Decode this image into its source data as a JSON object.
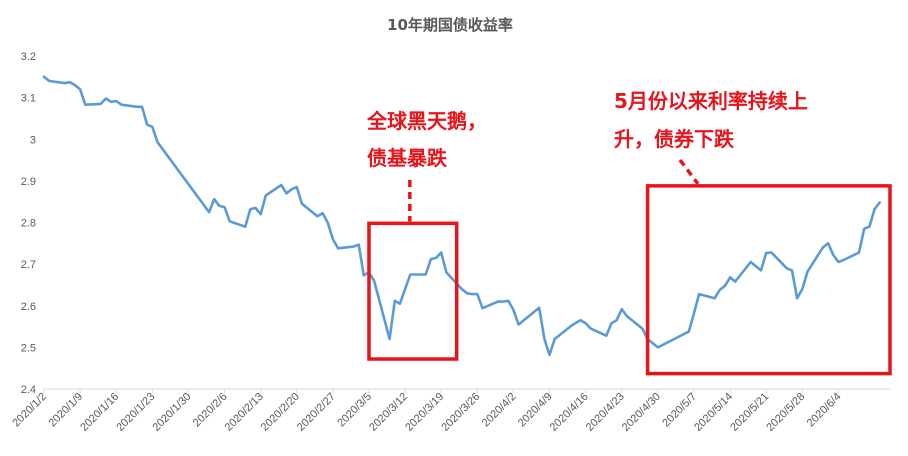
{
  "chart_data": {
    "type": "line",
    "title": "10年期国债收益率",
    "xlabel": "",
    "ylabel": "",
    "ylim": [
      2.4,
      3.2
    ],
    "y_ticks": [
      "2.4",
      "2.5",
      "2.6",
      "2.7",
      "2.8",
      "2.9",
      "3",
      "3.1",
      "3.2"
    ],
    "x_ticks": [
      "2020/1/2",
      "2020/1/9",
      "2020/1/16",
      "2020/1/23",
      "2020/1/30",
      "2020/2/6",
      "2020/2/13",
      "2020/2/20",
      "2020/2/27",
      "2020/3/5",
      "2020/3/12",
      "2020/3/19",
      "2020/3/26",
      "2020/4/2",
      "2020/4/9",
      "2020/4/16",
      "2020/4/23",
      "2020/4/30",
      "2020/5/7",
      "2020/5/14",
      "2020/5/21",
      "2020/5/28",
      "2020/6/4"
    ],
    "grid": false,
    "legend": "none",
    "series": [
      {
        "color": "#5b9bd5",
        "points": [
          [
            "2020-01-02",
            3.15
          ],
          [
            "2020-01-03",
            3.14
          ],
          [
            "2020-01-06",
            3.135
          ],
          [
            "2020-01-07",
            3.137
          ],
          [
            "2020-01-08",
            3.13
          ],
          [
            "2020-01-09",
            3.12
          ],
          [
            "2020-01-10",
            3.083
          ],
          [
            "2020-01-13",
            3.085
          ],
          [
            "2020-01-14",
            3.098
          ],
          [
            "2020-01-15",
            3.09
          ],
          [
            "2020-01-16",
            3.092
          ],
          [
            "2020-01-17",
            3.083
          ],
          [
            "2020-01-20",
            3.078
          ],
          [
            "2020-01-21",
            3.078
          ],
          [
            "2020-01-22",
            3.035
          ],
          [
            "2020-01-23",
            3.03
          ],
          [
            "2020-01-24",
            2.993
          ],
          [
            "2020-02-03",
            2.825
          ],
          [
            "2020-02-04",
            2.856
          ],
          [
            "2020-02-05",
            2.84
          ],
          [
            "2020-02-06",
            2.837
          ],
          [
            "2020-02-07",
            2.803
          ],
          [
            "2020-02-10",
            2.79
          ],
          [
            "2020-02-11",
            2.832
          ],
          [
            "2020-02-12",
            2.835
          ],
          [
            "2020-02-13",
            2.82
          ],
          [
            "2020-02-14",
            2.865
          ],
          [
            "2020-02-17",
            2.89
          ],
          [
            "2020-02-18",
            2.87
          ],
          [
            "2020-02-19",
            2.88
          ],
          [
            "2020-02-20",
            2.885
          ],
          [
            "2020-02-21",
            2.845
          ],
          [
            "2020-02-24",
            2.815
          ],
          [
            "2020-02-25",
            2.822
          ],
          [
            "2020-02-26",
            2.8
          ],
          [
            "2020-02-27",
            2.76
          ],
          [
            "2020-02-28",
            2.738
          ],
          [
            "2020-03-02",
            2.742
          ],
          [
            "2020-03-03",
            2.747
          ],
          [
            "2020-03-04",
            2.673
          ],
          [
            "2020-03-05",
            2.68
          ],
          [
            "2020-03-06",
            2.66
          ],
          [
            "2020-03-09",
            2.52
          ],
          [
            "2020-03-10",
            2.612
          ],
          [
            "2020-03-11",
            2.605
          ],
          [
            "2020-03-12",
            2.64
          ],
          [
            "2020-03-13",
            2.675
          ],
          [
            "2020-03-16",
            2.675
          ],
          [
            "2020-03-17",
            2.712
          ],
          [
            "2020-03-18",
            2.715
          ],
          [
            "2020-03-19",
            2.728
          ],
          [
            "2020-03-20",
            2.68
          ],
          [
            "2020-03-23",
            2.64
          ],
          [
            "2020-03-24",
            2.63
          ],
          [
            "2020-03-25",
            2.628
          ],
          [
            "2020-03-26",
            2.628
          ],
          [
            "2020-03-27",
            2.594
          ],
          [
            "2020-03-30",
            2.61
          ],
          [
            "2020-03-31",
            2.61
          ],
          [
            "2020-04-01",
            2.612
          ],
          [
            "2020-04-02",
            2.59
          ],
          [
            "2020-04-03",
            2.555
          ],
          [
            "2020-04-07",
            2.595
          ],
          [
            "2020-04-08",
            2.52
          ],
          [
            "2020-04-09",
            2.482
          ],
          [
            "2020-04-10",
            2.52
          ],
          [
            "2020-04-13",
            2.55
          ],
          [
            "2020-04-14",
            2.558
          ],
          [
            "2020-04-15",
            2.565
          ],
          [
            "2020-04-16",
            2.558
          ],
          [
            "2020-04-17",
            2.545
          ],
          [
            "2020-04-20",
            2.528
          ],
          [
            "2020-04-21",
            2.558
          ],
          [
            "2020-04-22",
            2.565
          ],
          [
            "2020-04-23",
            2.592
          ],
          [
            "2020-04-24",
            2.575
          ],
          [
            "2020-04-27",
            2.545
          ],
          [
            "2020-04-28",
            2.52
          ],
          [
            "2020-04-29",
            2.51
          ],
          [
            "2020-04-30",
            2.5
          ],
          [
            "2020-05-06",
            2.538
          ],
          [
            "2020-05-07",
            2.582
          ],
          [
            "2020-05-08",
            2.628
          ],
          [
            "2020-05-11",
            2.618
          ],
          [
            "2020-05-12",
            2.638
          ],
          [
            "2020-05-13",
            2.648
          ],
          [
            "2020-05-14",
            2.668
          ],
          [
            "2020-05-15",
            2.658
          ],
          [
            "2020-05-18",
            2.705
          ],
          [
            "2020-05-19",
            2.695
          ],
          [
            "2020-05-20",
            2.685
          ],
          [
            "2020-05-21",
            2.727
          ],
          [
            "2020-05-22",
            2.728
          ],
          [
            "2020-05-25",
            2.69
          ],
          [
            "2020-05-26",
            2.685
          ],
          [
            "2020-05-27",
            2.618
          ],
          [
            "2020-05-28",
            2.64
          ],
          [
            "2020-05-29",
            2.682
          ],
          [
            "2020-06-01",
            2.74
          ],
          [
            "2020-06-02",
            2.75
          ],
          [
            "2020-06-03",
            2.722
          ],
          [
            "2020-06-04",
            2.705
          ],
          [
            "2020-06-05",
            2.71
          ],
          [
            "2020-06-08",
            2.728
          ],
          [
            "2020-06-09",
            2.785
          ],
          [
            "2020-06-10",
            2.79
          ],
          [
            "2020-06-11",
            2.832
          ],
          [
            "2020-06-12",
            2.848
          ]
        ]
      }
    ],
    "annotations": [
      {
        "lines": [
          "全球黑天鹅，",
          "债基暴跌"
        ],
        "box_x": [
          "2020-03-05",
          "2020-03-22"
        ],
        "box_y": [
          2.472,
          2.798
        ]
      },
      {
        "lines": [
          "5月份以来利率持续上",
          "升，债券下跌"
        ],
        "box_x": [
          "2020-04-28",
          "2020-06-14"
        ],
        "box_y": [
          2.437,
          2.888
        ]
      }
    ]
  }
}
